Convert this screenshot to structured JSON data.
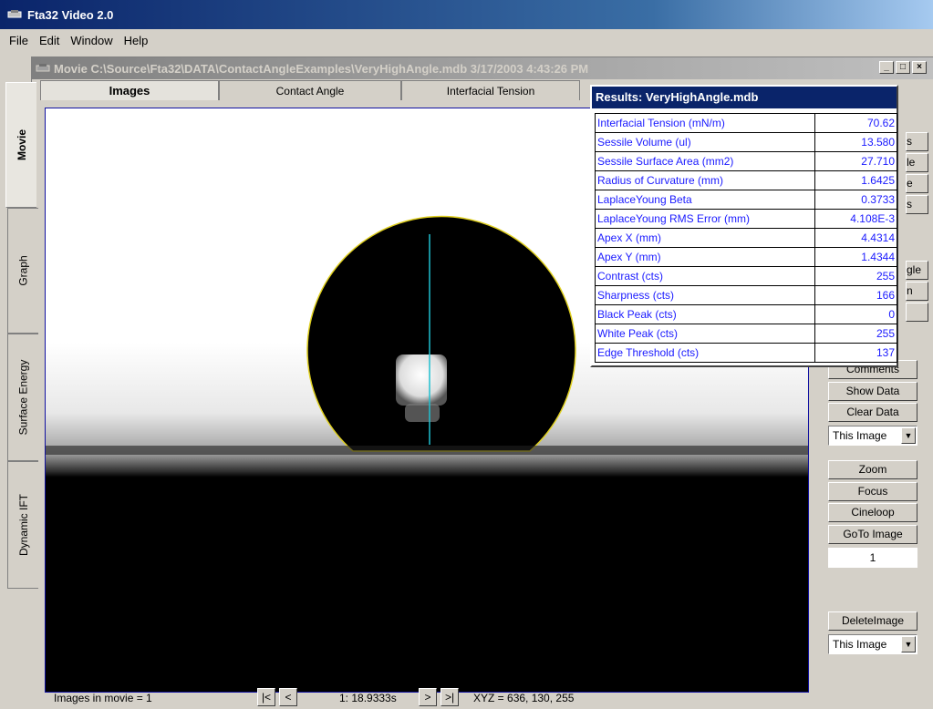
{
  "app": {
    "title": "Fta32 Video 2.0"
  },
  "menu": [
    "File",
    "Edit",
    "Window",
    "Help"
  ],
  "movie_window": {
    "title": "Movie C:\\Source\\Fta32\\DATA\\ContactAngleExamples\\VeryHighAngle.mdb 3/17/2003 4:43:26 PM",
    "buttons": [
      "_",
      "□",
      "×"
    ]
  },
  "left_tabs": [
    "Movie",
    "Graph",
    "Surface Energy",
    "Dynamic IFT"
  ],
  "top_tabs": [
    "Images",
    "Contact Angle",
    "Interfacial Tension"
  ],
  "results": {
    "title": "Results: VeryHighAngle.mdb",
    "rows": [
      {
        "label": "Interfacial Tension (mN/m)",
        "value": "70.62"
      },
      {
        "label": "Sessile Volume (ul)",
        "value": "13.580"
      },
      {
        "label": "Sessile Surface Area (mm2)",
        "value": "27.710"
      },
      {
        "label": "Radius of Curvature (mm)",
        "value": "1.6425"
      },
      {
        "label": "LaplaceYoung Beta",
        "value": "0.3733"
      },
      {
        "label": "LaplaceYoung RMS Error (mm)",
        "value": "4.108E-3"
      },
      {
        "label": "Apex X (mm)",
        "value": "4.4314"
      },
      {
        "label": "Apex Y (mm)",
        "value": "1.4344"
      },
      {
        "label": "Contrast (cts)",
        "value": "255"
      },
      {
        "label": "Sharpness (cts)",
        "value": "166"
      },
      {
        "label": "Black Peak (cts)",
        "value": "0"
      },
      {
        "label": "White Peak (cts)",
        "value": "255"
      },
      {
        "label": "Edge Threshold (cts)",
        "value": "137"
      }
    ]
  },
  "right_panel": {
    "partial_labels": [
      "s",
      "le",
      "e",
      "s",
      "gle",
      "n",
      ""
    ],
    "comments": "Comments",
    "show_data": "Show Data",
    "clear_data": "Clear Data",
    "scope_1": "This Image",
    "zoom": "Zoom",
    "focus": "Focus",
    "cineloop": "Cineloop",
    "goto_image": "GoTo Image",
    "image_number": "1",
    "delete_image": "DeleteImage",
    "scope_2": "This Image"
  },
  "status": {
    "images_in_movie": "Images in movie = 1",
    "first": "|<",
    "prev": "<",
    "time": "1:  18.9333s",
    "next": ">",
    "last": ">|",
    "xyz": "XYZ = 636, 130, 255"
  }
}
